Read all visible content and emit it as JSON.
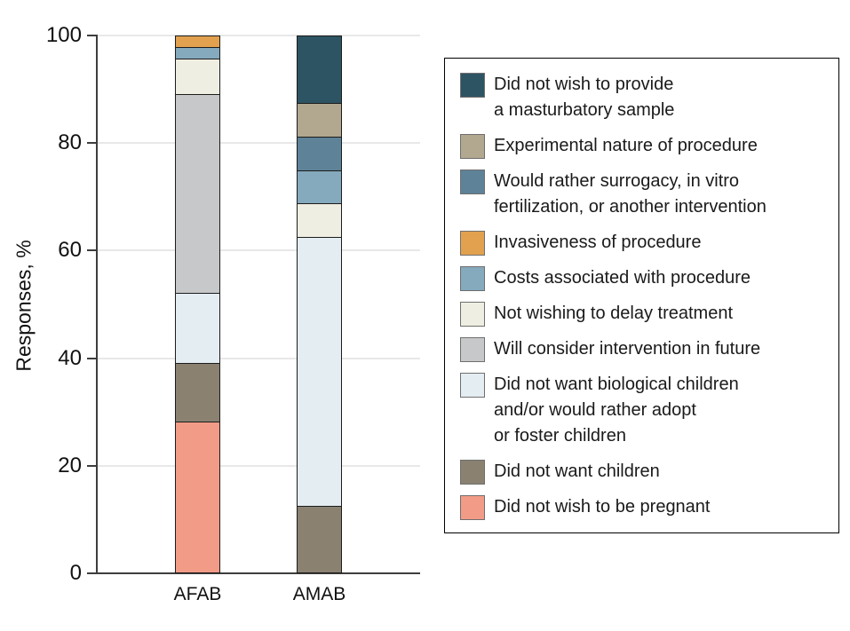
{
  "figure": {
    "background": "#ffffff",
    "text_color": "#1a1a1a",
    "axis_color": "#3d3d3d",
    "gridline_color": "#e8e8e8",
    "segment_border_color": "#1c1c1c",
    "legend_border_color": "#000000"
  },
  "chart_data": {
    "type": "bar",
    "subtype": "stacked-vertical",
    "title": "",
    "ylabel": "Responses, %",
    "xlabel": "",
    "ylim": [
      0,
      100
    ],
    "yticks": [
      0,
      20,
      40,
      60,
      80,
      100
    ],
    "ytick_labels": [
      "0",
      "20",
      "40",
      "60",
      "80",
      "100"
    ],
    "grid": true,
    "legend_position": "right",
    "categories": [
      "AFAB",
      "AMAB"
    ],
    "series": [
      {
        "name": "Did not wish to provide a masturbatory sample",
        "label_lines": [
          "Did not wish to provide",
          "a masturbatory sample"
        ],
        "color": "#2D5463",
        "values": [
          0,
          12.5
        ]
      },
      {
        "name": "Experimental nature of procedure",
        "label_lines": [
          "Experimental nature of procedure"
        ],
        "color": "#B2A78F",
        "values": [
          0,
          6.25
        ]
      },
      {
        "name": "Would rather surrogacy, in vitro fertilization, or another intervention",
        "label_lines": [
          "Would rather surrogacy, in vitro",
          "fertilization, or another intervention"
        ],
        "color": "#5E8297",
        "values": [
          0,
          6.25
        ]
      },
      {
        "name": "Invasiveness of procedure",
        "label_lines": [
          "Invasiveness of procedure"
        ],
        "color": "#E2A14F",
        "values": [
          2.17,
          0
        ]
      },
      {
        "name": "Costs associated with procedure",
        "label_lines": [
          "Costs associated with procedure"
        ],
        "color": "#85A9BD",
        "values": [
          2.17,
          6.25
        ]
      },
      {
        "name": "Not wishing to delay treatment",
        "label_lines": [
          "Not wishing to delay treatment"
        ],
        "color": "#EFEEE2",
        "values": [
          6.52,
          6.25
        ]
      },
      {
        "name": "Will consider intervention in future",
        "label_lines": [
          "Will consider intervention in future"
        ],
        "color": "#C6C8CA",
        "values": [
          36.96,
          0
        ]
      },
      {
        "name": "Did not want biological children and/or would rather adopt or foster children",
        "label_lines": [
          "Did not want biological children",
          "and/or would rather adopt",
          "or foster children"
        ],
        "color": "#E4EDF2",
        "values": [
          13.04,
          50
        ]
      },
      {
        "name": "Did not want children",
        "label_lines": [
          "Did not want children"
        ],
        "color": "#8A8171",
        "values": [
          10.87,
          12.5
        ]
      },
      {
        "name": "Did not wish to be pregnant",
        "label_lines": [
          "Did not wish to be pregnant"
        ],
        "color": "#F29B87",
        "values": [
          28.26,
          0
        ]
      }
    ]
  }
}
